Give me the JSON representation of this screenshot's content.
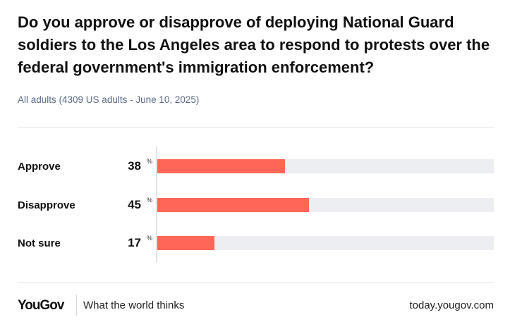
{
  "chart_data": {
    "type": "bar",
    "orientation": "horizontal",
    "title": "Do you approve or disapprove of deploying National Guard soldiers to the Los Angeles area to respond to protests over the federal government's immigration enforcement?",
    "subtitle": "All adults (4309 US adults - June 10, 2025)",
    "categories": [
      "Approve",
      "Disapprove",
      "Not sure"
    ],
    "values": [
      38,
      45,
      17
    ],
    "unit": "%",
    "xlim": [
      0,
      100
    ],
    "bar_color": "#ff6657",
    "track_color": "#eceef1"
  },
  "footer": {
    "logo": "YouGov",
    "tagline": "What the world thinks",
    "url": "today.yougov.com"
  }
}
